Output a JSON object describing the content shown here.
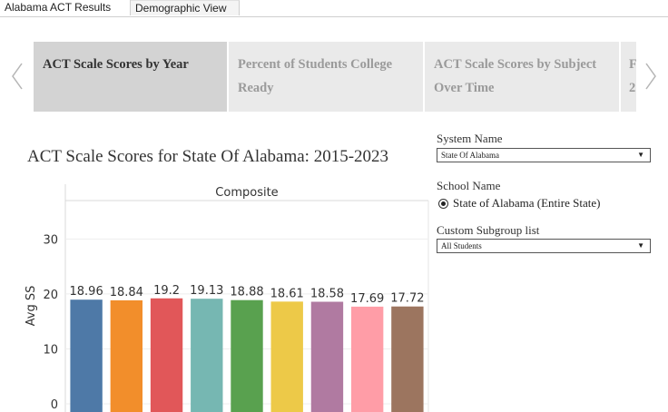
{
  "tabs": [
    {
      "label": "Alabama ACT Results",
      "active": true
    },
    {
      "label": "Demographic View",
      "active": false
    }
  ],
  "story_points": [
    {
      "label": "ACT Scale Scores by Year",
      "selected": true
    },
    {
      "label": "Percent of Students College Ready",
      "selected": false
    },
    {
      "label": "ACT Scale Scores by Subject Over Time",
      "selected": false
    },
    {
      "label": "F 2",
      "selected": false
    }
  ],
  "nav": {
    "prev_icon": "chevron-left-icon",
    "next_icon": "chevron-right-icon"
  },
  "chart_title": "ACT Scale Scores for State Of Alabama: 2015-2023",
  "filters": {
    "system_name_label": "System Name",
    "system_name_value": "State Of Alabama",
    "school_name_label": "School Name",
    "school_name_option": "State of Alabama (Entire State)",
    "subgroup_label": "Custom Subgroup list",
    "subgroup_value": "All Students"
  },
  "chart_data": {
    "type": "bar",
    "panel_title": "Composite",
    "ylabel": "Avg SS",
    "ylim": [
      0,
      37
    ],
    "yticks": [
      0,
      10,
      20,
      30
    ],
    "grid": true,
    "values": [
      18.96,
      18.84,
      19.2,
      19.13,
      18.88,
      18.61,
      18.58,
      17.69,
      17.72
    ],
    "value_labels": [
      "18.96",
      "18.84",
      "19.2",
      "19.13",
      "18.88",
      "18.61",
      "18.58",
      "17.69",
      "17.72"
    ],
    "colors": [
      "#4e79a7",
      "#f28e2b",
      "#e15759",
      "#76b7b2",
      "#59a14f",
      "#edc948",
      "#b07aa1",
      "#ff9da7",
      "#9c755f"
    ]
  }
}
